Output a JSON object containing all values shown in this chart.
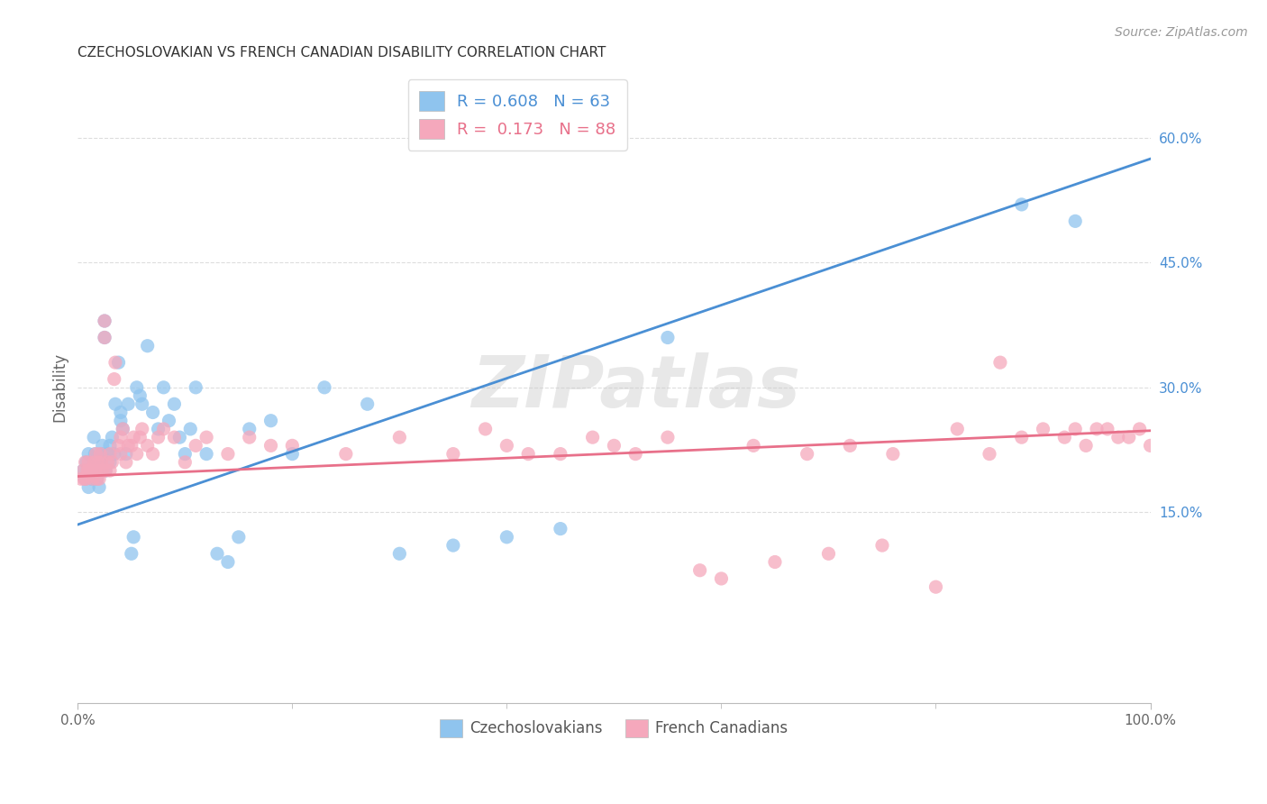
{
  "title": "CZECHOSLOVAKIAN VS FRENCH CANADIAN DISABILITY CORRELATION CHART",
  "source": "Source: ZipAtlas.com",
  "ylabel": "Disability",
  "xlim": [
    0.0,
    1.0
  ],
  "ylim": [
    -0.08,
    0.68
  ],
  "y_ticks": [
    0.15,
    0.3,
    0.45,
    0.6
  ],
  "y_tick_labels": [
    "15.0%",
    "30.0%",
    "45.0%",
    "60.0%"
  ],
  "x_tick_labels": [
    "0.0%",
    "100.0%"
  ],
  "watermark": "ZIPatlas",
  "blue_color": "#8FC4EE",
  "pink_color": "#F5A8BC",
  "blue_line_color": "#4A8FD4",
  "pink_line_color": "#E8708A",
  "legend_blue_r": "0.608",
  "legend_blue_n": "63",
  "legend_pink_r": "0.173",
  "legend_pink_n": "88",
  "blue_scatter_x": [
    0.005,
    0.007,
    0.008,
    0.01,
    0.01,
    0.012,
    0.013,
    0.015,
    0.015,
    0.016,
    0.017,
    0.018,
    0.02,
    0.02,
    0.021,
    0.022,
    0.023,
    0.025,
    0.025,
    0.026,
    0.028,
    0.03,
    0.03,
    0.032,
    0.034,
    0.035,
    0.038,
    0.04,
    0.04,
    0.042,
    0.045,
    0.047,
    0.05,
    0.052,
    0.055,
    0.058,
    0.06,
    0.065,
    0.07,
    0.075,
    0.08,
    0.085,
    0.09,
    0.095,
    0.1,
    0.105,
    0.11,
    0.12,
    0.13,
    0.14,
    0.15,
    0.16,
    0.18,
    0.2,
    0.23,
    0.27,
    0.3,
    0.35,
    0.4,
    0.45,
    0.55,
    0.88,
    0.93
  ],
  "blue_scatter_y": [
    0.2,
    0.19,
    0.21,
    0.22,
    0.18,
    0.2,
    0.19,
    0.24,
    0.21,
    0.22,
    0.2,
    0.19,
    0.2,
    0.18,
    0.21,
    0.22,
    0.23,
    0.36,
    0.38,
    0.2,
    0.22,
    0.21,
    0.23,
    0.24,
    0.22,
    0.28,
    0.33,
    0.26,
    0.27,
    0.25,
    0.22,
    0.28,
    0.1,
    0.12,
    0.3,
    0.29,
    0.28,
    0.35,
    0.27,
    0.25,
    0.3,
    0.26,
    0.28,
    0.24,
    0.22,
    0.25,
    0.3,
    0.22,
    0.1,
    0.09,
    0.12,
    0.25,
    0.26,
    0.22,
    0.3,
    0.28,
    0.1,
    0.11,
    0.12,
    0.13,
    0.36,
    0.52,
    0.5
  ],
  "pink_scatter_x": [
    0.003,
    0.005,
    0.006,
    0.007,
    0.008,
    0.009,
    0.01,
    0.01,
    0.012,
    0.013,
    0.014,
    0.015,
    0.016,
    0.017,
    0.018,
    0.019,
    0.02,
    0.02,
    0.021,
    0.022,
    0.023,
    0.025,
    0.025,
    0.026,
    0.028,
    0.03,
    0.03,
    0.032,
    0.034,
    0.035,
    0.038,
    0.04,
    0.04,
    0.042,
    0.045,
    0.047,
    0.05,
    0.052,
    0.055,
    0.058,
    0.06,
    0.065,
    0.07,
    0.075,
    0.08,
    0.09,
    0.1,
    0.11,
    0.12,
    0.14,
    0.16,
    0.18,
    0.2,
    0.25,
    0.3,
    0.35,
    0.4,
    0.45,
    0.5,
    0.55,
    0.6,
    0.65,
    0.7,
    0.75,
    0.8,
    0.85,
    0.88,
    0.9,
    0.92,
    0.93,
    0.94,
    0.95,
    0.96,
    0.97,
    0.98,
    0.99,
    1.0,
    0.38,
    0.42,
    0.48,
    0.52,
    0.58,
    0.63,
    0.68,
    0.72,
    0.76,
    0.82,
    0.86
  ],
  "pink_scatter_y": [
    0.19,
    0.2,
    0.19,
    0.21,
    0.19,
    0.2,
    0.2,
    0.21,
    0.2,
    0.2,
    0.19,
    0.21,
    0.2,
    0.22,
    0.19,
    0.21,
    0.2,
    0.19,
    0.22,
    0.21,
    0.2,
    0.36,
    0.38,
    0.2,
    0.21,
    0.2,
    0.22,
    0.21,
    0.31,
    0.33,
    0.23,
    0.24,
    0.22,
    0.25,
    0.21,
    0.23,
    0.23,
    0.24,
    0.22,
    0.24,
    0.25,
    0.23,
    0.22,
    0.24,
    0.25,
    0.24,
    0.21,
    0.23,
    0.24,
    0.22,
    0.24,
    0.23,
    0.23,
    0.22,
    0.24,
    0.22,
    0.23,
    0.22,
    0.23,
    0.24,
    0.07,
    0.09,
    0.1,
    0.11,
    0.06,
    0.22,
    0.24,
    0.25,
    0.24,
    0.25,
    0.23,
    0.25,
    0.25,
    0.24,
    0.24,
    0.25,
    0.23,
    0.25,
    0.22,
    0.24,
    0.22,
    0.08,
    0.23,
    0.22,
    0.23,
    0.22,
    0.25,
    0.33
  ],
  "blue_line_x0": 0.0,
  "blue_line_y0": 0.135,
  "blue_line_x1": 1.0,
  "blue_line_y1": 0.575,
  "pink_line_x0": 0.0,
  "pink_line_y0": 0.193,
  "pink_line_x1": 1.0,
  "pink_line_y1": 0.248,
  "background_color": "#FFFFFF",
  "grid_color": "#DDDDDD"
}
